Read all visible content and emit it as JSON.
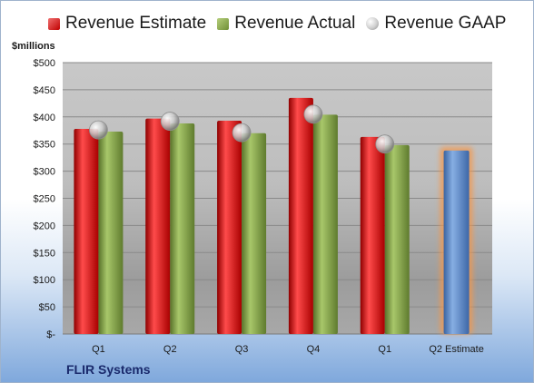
{
  "chart_data": {
    "type": "bar",
    "unit_label": "$millions",
    "company": "FLIR Systems",
    "categories": [
      "Q1",
      "Q2",
      "Q3",
      "Q4",
      "Q1",
      "Q2 Estimate"
    ],
    "ylim": [
      0,
      500
    ],
    "yticks": [
      {
        "value": 0,
        "label": "$-"
      },
      {
        "value": 50,
        "label": "$50"
      },
      {
        "value": 100,
        "label": "$100"
      },
      {
        "value": 150,
        "label": "$150"
      },
      {
        "value": 200,
        "label": "$200"
      },
      {
        "value": 250,
        "label": "$250"
      },
      {
        "value": 300,
        "label": "$300"
      },
      {
        "value": 350,
        "label": "$350"
      },
      {
        "value": 400,
        "label": "$400"
      },
      {
        "value": 450,
        "label": "$450"
      },
      {
        "value": 500,
        "label": "$500"
      }
    ],
    "grid": true,
    "legend_position": "top",
    "series": [
      {
        "name": "Revenue Estimate",
        "type": "bar",
        "color": "#c00000",
        "values": [
          378,
          397,
          393,
          435,
          363,
          null
        ]
      },
      {
        "name": "Revenue Actual",
        "type": "bar",
        "color": "#77933c",
        "values": [
          373,
          388,
          370,
          404,
          348,
          null
        ]
      },
      {
        "name": "Revenue GAAP",
        "type": "marker",
        "color": "#c0c0c0",
        "values": [
          376,
          392,
          371,
          405,
          350,
          null
        ]
      }
    ],
    "estimate_bar": {
      "category": "Q2 Estimate",
      "value": 338,
      "color": "#4f81bd",
      "highlight": "#f79646"
    }
  }
}
